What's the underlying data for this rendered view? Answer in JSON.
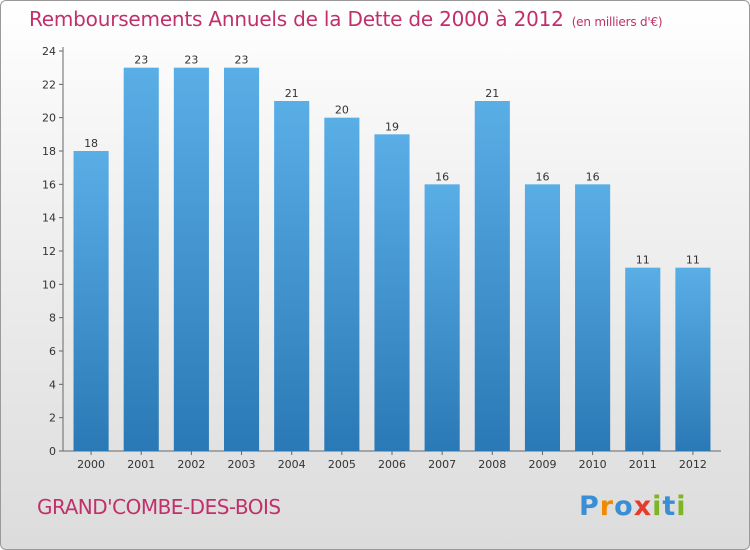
{
  "header": {
    "title": "Remboursements Annuels de la Dette de 2000 à 2012",
    "subtitle": "(en milliers d'€)"
  },
  "footer": {
    "commune": "GRAND'COMBE-DES-BOIS",
    "logo": [
      "P",
      "r",
      "o",
      "x",
      "i",
      "t",
      "i"
    ]
  },
  "colors": {
    "title": "#c0306a",
    "bar_top": "#5aaee6",
    "bar_bottom": "#2a79b6",
    "logo": [
      "#3a8fd4",
      "#f08a00",
      "#3a8fd4",
      "#e53b2c",
      "#7cb526",
      "#3a8fd4",
      "#7cb526"
    ]
  },
  "chart_data": {
    "type": "bar",
    "categories": [
      "2000",
      "2001",
      "2002",
      "2003",
      "2004",
      "2005",
      "2006",
      "2007",
      "2008",
      "2009",
      "2010",
      "2011",
      "2012"
    ],
    "values": [
      18,
      23,
      23,
      23,
      21,
      20,
      19,
      16,
      21,
      16,
      16,
      11,
      11
    ],
    "title": "Remboursements Annuels de la Dette de 2000 à 2012",
    "subtitle": "(en milliers d'€)",
    "ylim": [
      0,
      24
    ],
    "yticks": [
      0,
      2,
      4,
      6,
      8,
      10,
      12,
      14,
      16,
      18,
      20,
      22,
      24
    ],
    "grid": false,
    "data_labels": true
  }
}
